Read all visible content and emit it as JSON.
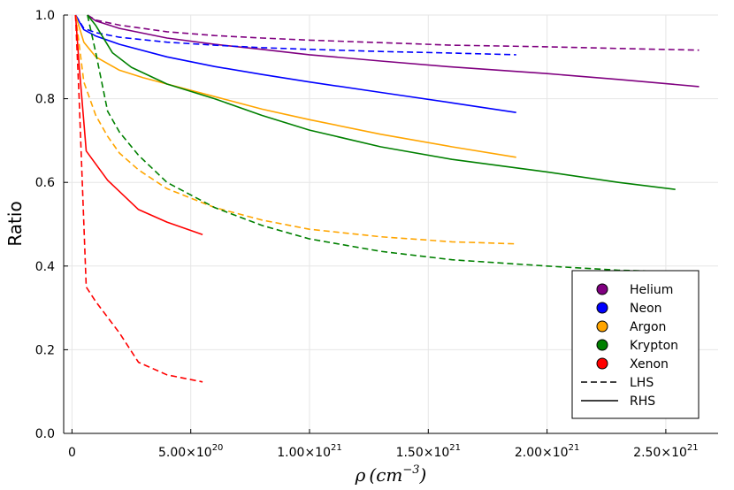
{
  "chart_data": {
    "type": "line",
    "title": "",
    "xlabel_parts": {
      "symbol": "ρ",
      "unit": "cm",
      "exponent": "−3"
    },
    "ylabel": "Ratio",
    "xlim": [
      -3.5e+19,
      2.72e+21
    ],
    "ylim": [
      0.0,
      1.0
    ],
    "grid": true,
    "x_ticks": [
      0,
      5e+20,
      1e+21,
      1.5e+21,
      2e+21,
      2.5e+21
    ],
    "x_tick_labels": [
      {
        "base": "0",
        "exp": ""
      },
      {
        "base": "5.00×10",
        "exp": "20"
      },
      {
        "base": "1.00×10",
        "exp": "21"
      },
      {
        "base": "1.50×10",
        "exp": "21"
      },
      {
        "base": "2.00×10",
        "exp": "21"
      },
      {
        "base": "2.50×10",
        "exp": "21"
      }
    ],
    "y_ticks": [
      0.0,
      0.2,
      0.4,
      0.6,
      0.8,
      1.0
    ],
    "y_tick_labels": [
      "0.0",
      "0.2",
      "0.4",
      "0.6",
      "0.8",
      "1.0"
    ],
    "legend_position": "bottom-right",
    "legend": [
      {
        "label": "Helium",
        "kind": "marker",
        "color": "#800080"
      },
      {
        "label": "Neon",
        "kind": "marker",
        "color": "#0000ff"
      },
      {
        "label": "Argon",
        "kind": "marker",
        "color": "#ffa500"
      },
      {
        "label": "Krypton",
        "kind": "marker",
        "color": "#008000"
      },
      {
        "label": "Xenon",
        "kind": "marker",
        "color": "#ff0000"
      },
      {
        "label": "LHS",
        "kind": "dashed",
        "color": "#000000"
      },
      {
        "label": "RHS",
        "kind": "solid",
        "color": "#000000"
      }
    ],
    "series": [
      {
        "name": "Helium LHS",
        "color": "#800080",
        "dash": true,
        "x": [
          6.5e+19,
          1e+20,
          2e+20,
          4e+20,
          6e+20,
          8e+20,
          1e+21,
          1.3e+21,
          1.6e+21,
          2e+21,
          2.3e+21,
          2.64e+21
        ],
        "y": [
          1.0,
          0.988,
          0.976,
          0.96,
          0.951,
          0.945,
          0.94,
          0.934,
          0.928,
          0.924,
          0.92,
          0.916
        ]
      },
      {
        "name": "Helium RHS",
        "color": "#800080",
        "dash": false,
        "x": [
          6.5e+19,
          1e+20,
          2e+20,
          4e+20,
          6e+20,
          8e+20,
          1e+21,
          1.3e+21,
          1.6e+21,
          2e+21,
          2.3e+21,
          2.64e+21
        ],
        "y": [
          1.0,
          0.986,
          0.968,
          0.945,
          0.93,
          0.918,
          0.905,
          0.89,
          0.876,
          0.86,
          0.846,
          0.829
        ]
      },
      {
        "name": "Neon LHS",
        "color": "#0000ff",
        "dash": true,
        "x": [
          1.5e+19,
          5e+19,
          1e+20,
          2e+20,
          4e+20,
          6e+20,
          8e+20,
          1e+21,
          1.3e+21,
          1.6e+21,
          1.87e+21
        ],
        "y": [
          1.0,
          0.968,
          0.958,
          0.947,
          0.935,
          0.928,
          0.922,
          0.918,
          0.913,
          0.909,
          0.905
        ]
      },
      {
        "name": "Neon RHS",
        "color": "#0000ff",
        "dash": false,
        "x": [
          1.5e+19,
          5e+19,
          1e+20,
          2e+20,
          4e+20,
          6e+20,
          8e+20,
          1e+21,
          1.3e+21,
          1.6e+21,
          1.87e+21
        ],
        "y": [
          1.0,
          0.965,
          0.95,
          0.93,
          0.9,
          0.877,
          0.858,
          0.84,
          0.815,
          0.79,
          0.767
        ]
      },
      {
        "name": "Argon LHS",
        "color": "#ffa500",
        "dash": true,
        "x": [
          1.5e+19,
          5e+19,
          1e+20,
          1.5e+20,
          2e+20,
          2.8e+20,
          4e+20,
          6e+20,
          8e+20,
          1e+21,
          1.3e+21,
          1.6e+21,
          1.87e+21
        ],
        "y": [
          1.0,
          0.84,
          0.76,
          0.71,
          0.67,
          0.63,
          0.585,
          0.54,
          0.51,
          0.488,
          0.47,
          0.458,
          0.453
        ]
      },
      {
        "name": "Argon RHS",
        "color": "#ffa500",
        "dash": false,
        "x": [
          1.5e+19,
          5e+19,
          1e+20,
          2e+20,
          3e+20,
          4e+20,
          6e+20,
          8e+20,
          1e+21,
          1.3e+21,
          1.6e+21,
          1.87e+21
        ],
        "y": [
          1.0,
          0.935,
          0.9,
          0.868,
          0.85,
          0.835,
          0.805,
          0.775,
          0.75,
          0.715,
          0.685,
          0.66
        ]
      },
      {
        "name": "Krypton LHS",
        "color": "#008000",
        "dash": true,
        "x": [
          6.5e+19,
          1e+20,
          1.5e+20,
          2e+20,
          2.8e+20,
          4e+20,
          6e+20,
          8e+20,
          1e+21,
          1.3e+21,
          1.6e+21,
          2e+21,
          2.3e+21,
          2.64e+21
        ],
        "y": [
          1.0,
          0.91,
          0.77,
          0.72,
          0.665,
          0.6,
          0.54,
          0.497,
          0.465,
          0.435,
          0.415,
          0.4,
          0.39,
          0.385
        ]
      },
      {
        "name": "Krypton RHS",
        "color": "#008000",
        "dash": false,
        "x": [
          6.5e+19,
          1e+20,
          1.7e+20,
          2.5e+20,
          4e+20,
          6e+20,
          8e+20,
          1e+21,
          1.3e+21,
          1.6e+21,
          2e+21,
          2.3e+21,
          2.54e+21
        ],
        "y": [
          1.0,
          0.975,
          0.91,
          0.875,
          0.835,
          0.8,
          0.76,
          0.725,
          0.685,
          0.655,
          0.625,
          0.6,
          0.583
        ]
      },
      {
        "name": "Xenon LHS",
        "color": "#ff0000",
        "dash": true,
        "x": [
          1.5e+19,
          3e+19,
          6e+19,
          1e+20,
          2e+20,
          2.8e+20,
          4e+20,
          5.5e+20
        ],
        "y": [
          1.0,
          0.8,
          0.35,
          0.315,
          0.24,
          0.17,
          0.14,
          0.123
        ]
      },
      {
        "name": "Xenon RHS",
        "color": "#ff0000",
        "dash": false,
        "x": [
          1.5e+19,
          3e+19,
          6e+19,
          1.5e+20,
          2.8e+20,
          4e+20,
          5.5e+20
        ],
        "y": [
          1.0,
          0.88,
          0.675,
          0.605,
          0.535,
          0.505,
          0.475
        ]
      }
    ]
  }
}
